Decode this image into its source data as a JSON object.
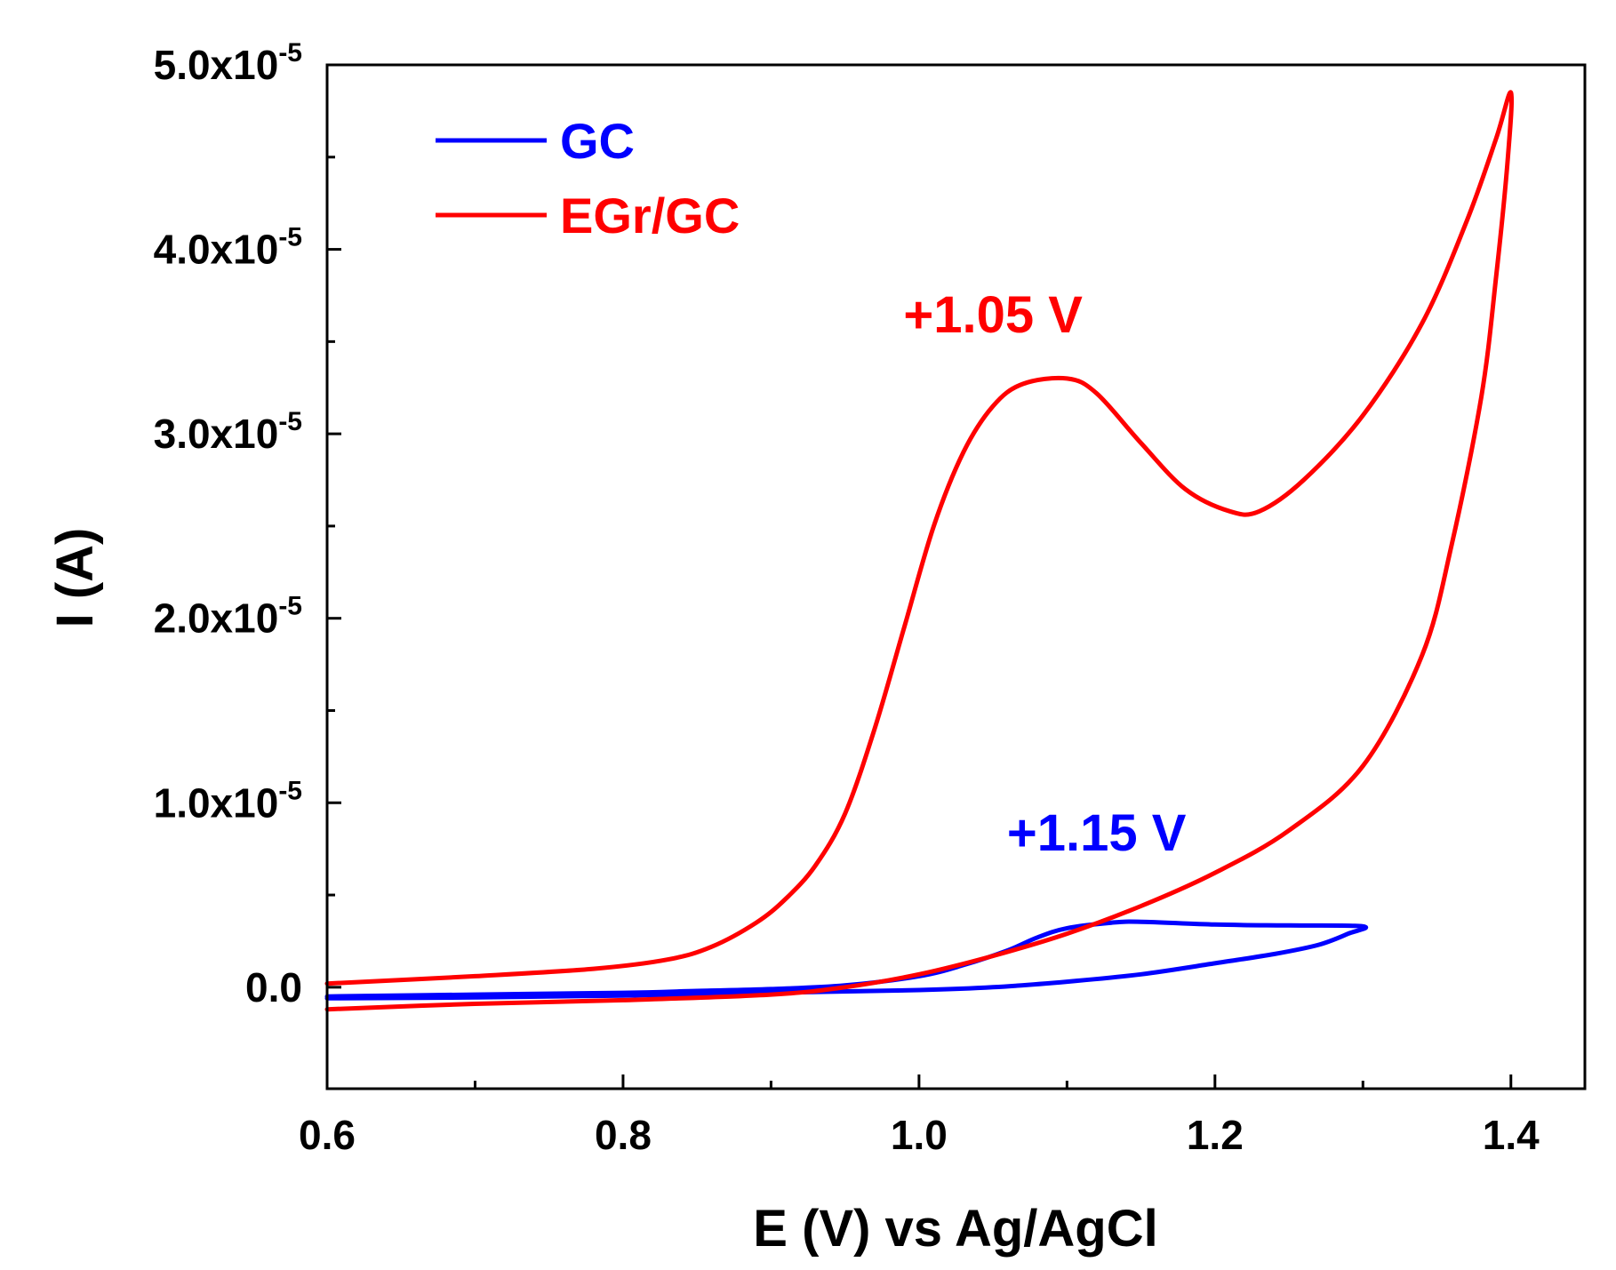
{
  "chart_data": {
    "type": "line",
    "title": "",
    "xlabel": "E (V) vs Ag/AgCl",
    "ylabel": "I (A)",
    "xlim": [
      0.6,
      1.45
    ],
    "ylim": [
      -5.5e-06,
      5e-05
    ],
    "x_ticks": [
      {
        "value": 0.6,
        "label": "0.6"
      },
      {
        "value": 0.8,
        "label": "0.8"
      },
      {
        "value": 1.0,
        "label": "1.0"
      },
      {
        "value": 1.2,
        "label": "1.2"
      },
      {
        "value": 1.4,
        "label": "1.4"
      }
    ],
    "x_minor_ticks": [
      0.7,
      0.9,
      1.1,
      1.3
    ],
    "y_ticks": [
      {
        "value": 0.0,
        "mantissa": "0.0",
        "exponent": ""
      },
      {
        "value": 1e-05,
        "mantissa": "1.0x10",
        "exponent": "-5"
      },
      {
        "value": 2e-05,
        "mantissa": "2.0x10",
        "exponent": "-5"
      },
      {
        "value": 3e-05,
        "mantissa": "3.0x10",
        "exponent": "-5"
      },
      {
        "value": 4e-05,
        "mantissa": "4.0x10",
        "exponent": "-5"
      },
      {
        "value": 5e-05,
        "mantissa": "5.0x10",
        "exponent": "-5"
      }
    ],
    "y_minor_ticks": [
      5e-06,
      1.5e-05,
      2.5e-05,
      3.5e-05,
      4.5e-05
    ],
    "legend_position": "top-left",
    "series": [
      {
        "name": "GC",
        "color": "#0000ff",
        "points": [
          [
            0.6,
            -5e-07
          ],
          [
            0.7,
            -4e-07
          ],
          [
            0.8,
            -3e-07
          ],
          [
            0.85,
            -2e-07
          ],
          [
            0.9,
            -1e-07
          ],
          [
            0.95,
            1e-07
          ],
          [
            1.0,
            6e-07
          ],
          [
            1.03,
            1.2e-06
          ],
          [
            1.06,
            2e-06
          ],
          [
            1.08,
            2.7e-06
          ],
          [
            1.1,
            3.2e-06
          ],
          [
            1.13,
            3.5e-06
          ],
          [
            1.15,
            3.55e-06
          ],
          [
            1.2,
            3.4e-06
          ],
          [
            1.25,
            3.35e-06
          ],
          [
            1.3,
            3.3e-06
          ],
          [
            1.29,
            2.9e-06
          ],
          [
            1.27,
            2.3e-06
          ],
          [
            1.24,
            1.8e-06
          ],
          [
            1.2,
            1.3e-06
          ],
          [
            1.15,
            7e-07
          ],
          [
            1.1,
            3e-07
          ],
          [
            1.05,
            0.0
          ],
          [
            1.0,
            -1.5e-07
          ],
          [
            0.9,
            -3e-07
          ],
          [
            0.8,
            -4.5e-07
          ],
          [
            0.7,
            -5.5e-07
          ],
          [
            0.6,
            -6e-07
          ]
        ]
      },
      {
        "name": "EGr/GC",
        "color": "#ff0000",
        "points": [
          [
            0.6,
            2e-07
          ],
          [
            0.7,
            6e-07
          ],
          [
            0.78,
            1e-06
          ],
          [
            0.83,
            1.5e-06
          ],
          [
            0.86,
            2.2e-06
          ],
          [
            0.89,
            3.5e-06
          ],
          [
            0.91,
            4.8e-06
          ],
          [
            0.93,
            6.6e-06
          ],
          [
            0.95,
            9.4e-06
          ],
          [
            0.97,
            1.4e-05
          ],
          [
            0.99,
            1.95e-05
          ],
          [
            1.01,
            2.5e-05
          ],
          [
            1.03,
            2.9e-05
          ],
          [
            1.05,
            3.15e-05
          ],
          [
            1.07,
            3.27e-05
          ],
          [
            1.1,
            3.3e-05
          ],
          [
            1.12,
            3.22e-05
          ],
          [
            1.15,
            2.95e-05
          ],
          [
            1.18,
            2.7e-05
          ],
          [
            1.21,
            2.58e-05
          ],
          [
            1.23,
            2.58e-05
          ],
          [
            1.26,
            2.75e-05
          ],
          [
            1.3,
            3.1e-05
          ],
          [
            1.34,
            3.6e-05
          ],
          [
            1.37,
            4.15e-05
          ],
          [
            1.39,
            4.6e-05
          ],
          [
            1.4,
            4.85e-05
          ],
          [
            1.398,
            4.5e-05
          ],
          [
            1.39,
            3.85e-05
          ],
          [
            1.38,
            3.2e-05
          ],
          [
            1.36,
            2.4e-05
          ],
          [
            1.34,
            1.8e-05
          ],
          [
            1.3,
            1.2e-05
          ],
          [
            1.25,
            8.5e-06
          ],
          [
            1.2,
            6.2e-06
          ],
          [
            1.15,
            4.4e-06
          ],
          [
            1.1,
            2.9e-06
          ],
          [
            1.05,
            1.7e-06
          ],
          [
            1.0,
            7e-07
          ],
          [
            0.95,
            0.0
          ],
          [
            0.9,
            -4e-07
          ],
          [
            0.8,
            -7e-07
          ],
          [
            0.7,
            -9e-07
          ],
          [
            0.6,
            -1.2e-06
          ]
        ]
      }
    ],
    "annotations": [
      {
        "text": "+1.05 V",
        "color": "#ff0000",
        "x": 1.05,
        "y": 3.55e-05
      },
      {
        "text": "+1.15 V",
        "color": "#0000ff",
        "x": 1.12,
        "y": 7.4e-06
      }
    ]
  }
}
